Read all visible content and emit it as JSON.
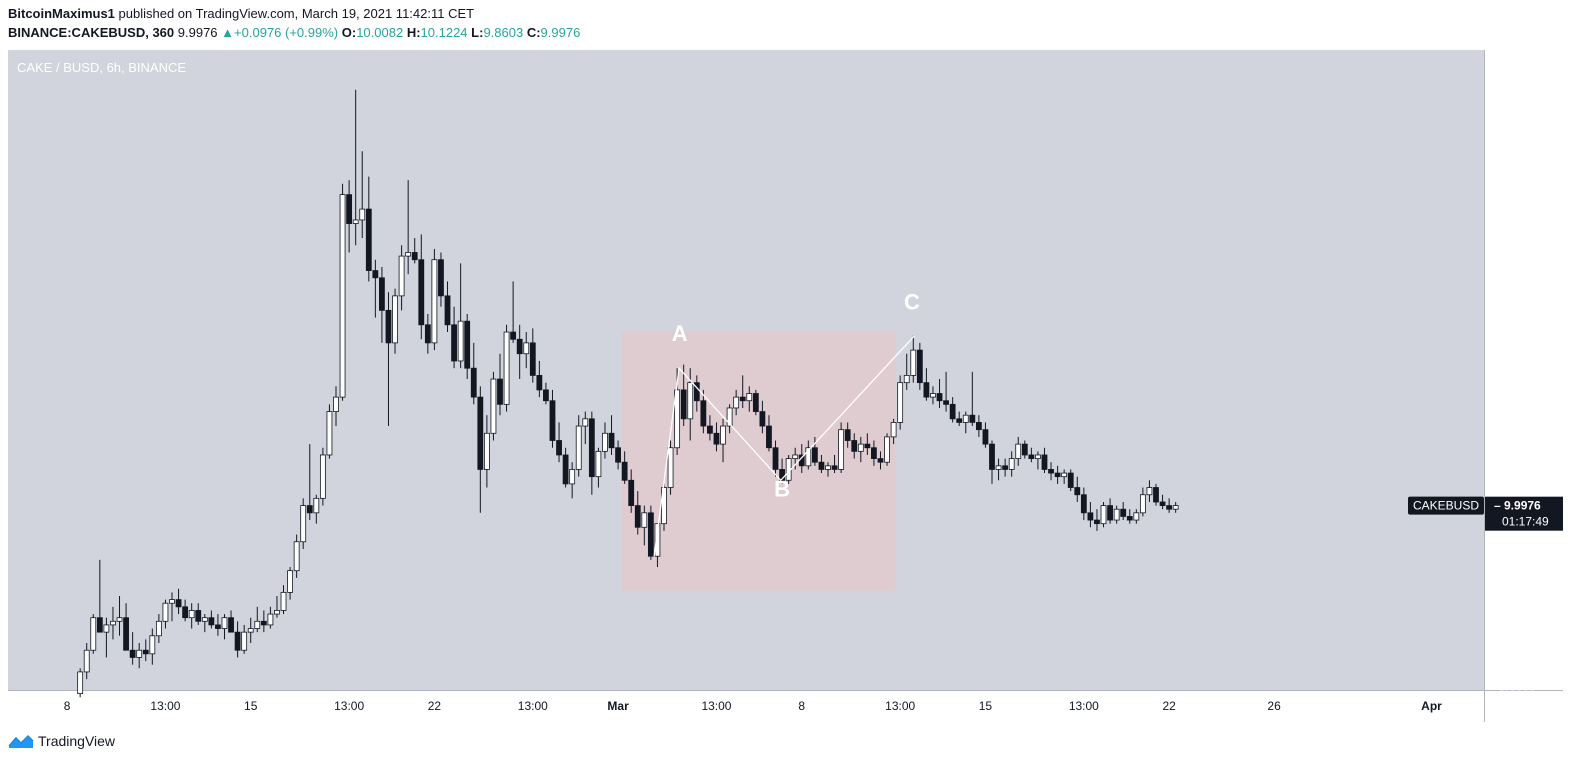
{
  "header": {
    "author": "BitcoinMaximus1",
    "published_text": " published on TradingView.com, March 19, 2021 11:42:11 CET",
    "symbol": "BINANCE:CAKEBUSD, 360",
    "last": "9.9976",
    "change": "+0.0976 (+0.99%)",
    "o_label": "O:",
    "o": "10.0082",
    "h_label": "H:",
    "h": "10.1224",
    "l_label": "L:",
    "l": "9.8603",
    "c_label": "C:",
    "c": "9.9976"
  },
  "footer": {
    "brand": "TradingView"
  },
  "colors": {
    "background": "#d1d4dc",
    "candle_up": "#ffffff",
    "candle_down": "#131722",
    "accent": "#26a69a",
    "zone": "#e3c9cc",
    "badge": "#131722"
  },
  "chart_data": {
    "type": "candlestick",
    "title": "CAKE / BUSD, 6h, BINANCE",
    "currency": "BUSD",
    "yticks": [
      "5.0000",
      "6.0000",
      "7.0000",
      "8.0000",
      "9.0000",
      "10.0000",
      "11.0000",
      "12.0000",
      "13.0000",
      "14.0000",
      "15.0000",
      "16.0000",
      "17.0000",
      "18.0000",
      "19.0000",
      "20.0000",
      "21.0000",
      "22.0000"
    ],
    "ylim": [
      4.9,
      22.6
    ],
    "xticks": [
      {
        "label": "8",
        "t": -2
      },
      {
        "label": "13:00",
        "t": 13
      },
      {
        "label": "15",
        "t": 26
      },
      {
        "label": "13:00",
        "t": 41
      },
      {
        "label": "22",
        "t": 54
      },
      {
        "label": "13:00",
        "t": 69
      },
      {
        "label": "Mar",
        "t": 82,
        "bold": true
      },
      {
        "label": "13:00",
        "t": 97
      },
      {
        "label": "8",
        "t": 110
      },
      {
        "label": "13:00",
        "t": 125
      },
      {
        "label": "15",
        "t": 138
      },
      {
        "label": "13:00",
        "t": 153
      },
      {
        "label": "22",
        "t": 166
      },
      {
        "label": "26",
        "t": 182
      },
      {
        "label": "Apr",
        "t": 206,
        "bold": true
      }
    ],
    "xlim": [
      -11,
      214
    ],
    "ohlc": [
      [
        0,
        4.8,
        5.5,
        4.7,
        5.4
      ],
      [
        1,
        5.4,
        6.2,
        5.2,
        6.0
      ],
      [
        2,
        6.0,
        7.0,
        5.9,
        6.9
      ],
      [
        3,
        6.9,
        8.5,
        6.5,
        6.5
      ],
      [
        4,
        6.5,
        6.9,
        5.8,
        6.7
      ],
      [
        5,
        6.7,
        7.2,
        6.3,
        6.8
      ],
      [
        6,
        6.8,
        7.5,
        6.4,
        6.9
      ],
      [
        7,
        6.9,
        7.3,
        6.0,
        6.0
      ],
      [
        8,
        6.0,
        6.5,
        5.6,
        5.8
      ],
      [
        9,
        5.8,
        6.2,
        5.5,
        6.0
      ],
      [
        10,
        6.0,
        6.3,
        5.7,
        5.9
      ],
      [
        11,
        5.9,
        6.6,
        5.6,
        6.4
      ],
      [
        12,
        6.4,
        7.0,
        6.2,
        6.8
      ],
      [
        13,
        6.8,
        7.4,
        6.6,
        7.3
      ],
      [
        14,
        7.3,
        7.6,
        6.8,
        7.4
      ],
      [
        15,
        7.4,
        7.7,
        7.0,
        7.2
      ],
      [
        16,
        7.2,
        7.4,
        6.8,
        6.9
      ],
      [
        17,
        6.9,
        7.3,
        6.6,
        7.1
      ],
      [
        18,
        7.1,
        7.3,
        6.7,
        6.8
      ],
      [
        19,
        6.8,
        7.0,
        6.5,
        6.9
      ],
      [
        20,
        6.9,
        7.1,
        6.6,
        6.7
      ],
      [
        21,
        6.7,
        7.0,
        6.4,
        6.6
      ],
      [
        22,
        6.6,
        7.0,
        6.3,
        6.9
      ],
      [
        23,
        6.9,
        7.1,
        6.5,
        6.5
      ],
      [
        24,
        6.5,
        6.8,
        5.8,
        6.0
      ],
      [
        25,
        6.0,
        6.7,
        5.9,
        6.5
      ],
      [
        26,
        6.5,
        6.9,
        6.2,
        6.6
      ],
      [
        27,
        6.6,
        7.2,
        6.5,
        6.8
      ],
      [
        28,
        6.8,
        7.1,
        6.5,
        6.7
      ],
      [
        29,
        6.7,
        7.2,
        6.6,
        7.0
      ],
      [
        30,
        7.0,
        7.5,
        6.9,
        7.1
      ],
      [
        31,
        7.1,
        7.8,
        7.0,
        7.6
      ],
      [
        32,
        7.6,
        8.3,
        7.4,
        8.2
      ],
      [
        33,
        8.2,
        9.2,
        8.0,
        9.0
      ],
      [
        34,
        9.0,
        10.2,
        8.8,
        10.0
      ],
      [
        35,
        10.0,
        11.7,
        9.6,
        9.8
      ],
      [
        36,
        9.8,
        10.3,
        9.5,
        10.2
      ],
      [
        37,
        10.2,
        11.6,
        10.0,
        11.4
      ],
      [
        38,
        11.4,
        12.8,
        11.3,
        12.6
      ],
      [
        39,
        12.6,
        13.3,
        12.2,
        13.0
      ],
      [
        40,
        13.0,
        18.9,
        12.9,
        18.6
      ],
      [
        41,
        18.6,
        19.0,
        17.0,
        17.8
      ],
      [
        42,
        17.8,
        21.5,
        17.2,
        17.9
      ],
      [
        43,
        17.9,
        19.8,
        17.4,
        18.2
      ],
      [
        44,
        18.2,
        19.1,
        16.2,
        16.5
      ],
      [
        45,
        16.5,
        16.8,
        15.2,
        16.3
      ],
      [
        46,
        16.3,
        16.6,
        14.5,
        15.4
      ],
      [
        47,
        15.4,
        15.9,
        12.2,
        14.5
      ],
      [
        48,
        14.5,
        16.0,
        14.2,
        15.8
      ],
      [
        49,
        15.8,
        17.2,
        15.4,
        16.9
      ],
      [
        50,
        16.9,
        19.0,
        16.4,
        17.0
      ],
      [
        51,
        17.0,
        17.4,
        16.7,
        16.8
      ],
      [
        52,
        16.8,
        17.5,
        14.6,
        15.0
      ],
      [
        53,
        15.0,
        15.3,
        14.2,
        14.5
      ],
      [
        54,
        14.5,
        17.1,
        14.3,
        16.8
      ],
      [
        55,
        16.8,
        17.0,
        15.5,
        15.8
      ],
      [
        56,
        15.8,
        16.2,
        14.8,
        15.0
      ],
      [
        57,
        15.0,
        15.5,
        13.8,
        14.0
      ],
      [
        58,
        14.0,
        16.7,
        13.8,
        15.1
      ],
      [
        59,
        15.1,
        15.3,
        13.5,
        13.8
      ],
      [
        60,
        13.8,
        14.5,
        12.8,
        13.0
      ],
      [
        61,
        13.0,
        13.3,
        9.8,
        11.0
      ],
      [
        62,
        11.0,
        12.5,
        10.5,
        12.0
      ],
      [
        63,
        12.0,
        13.7,
        11.8,
        13.5
      ],
      [
        64,
        13.5,
        14.2,
        12.5,
        12.8
      ],
      [
        65,
        12.8,
        15.0,
        12.6,
        14.8
      ],
      [
        66,
        14.8,
        16.2,
        14.5,
        14.6
      ],
      [
        67,
        14.6,
        15.0,
        13.5,
        14.2
      ],
      [
        68,
        14.2,
        14.8,
        13.8,
        14.5
      ],
      [
        69,
        14.5,
        14.9,
        13.4,
        13.6
      ],
      [
        70,
        13.6,
        14.0,
        13.0,
        13.2
      ],
      [
        71,
        13.2,
        13.4,
        12.8,
        12.9
      ],
      [
        72,
        12.9,
        13.2,
        11.6,
        11.8
      ],
      [
        73,
        11.8,
        12.3,
        11.2,
        11.4
      ],
      [
        74,
        11.4,
        11.6,
        10.5,
        10.6
      ],
      [
        75,
        10.6,
        11.2,
        10.2,
        11.0
      ],
      [
        76,
        11.0,
        12.5,
        10.8,
        12.2
      ],
      [
        77,
        12.2,
        12.6,
        11.7,
        12.4
      ],
      [
        78,
        12.4,
        12.6,
        10.3,
        10.8
      ],
      [
        79,
        10.8,
        11.6,
        10.5,
        11.5
      ],
      [
        80,
        11.5,
        12.3,
        11.3,
        12.0
      ],
      [
        81,
        12.0,
        12.5,
        11.4,
        11.6
      ],
      [
        82,
        11.6,
        11.8,
        11.0,
        11.2
      ],
      [
        83,
        11.2,
        11.5,
        10.6,
        10.7
      ],
      [
        84,
        10.7,
        11.0,
        9.8,
        10.0
      ],
      [
        85,
        10.0,
        10.4,
        9.2,
        9.4
      ],
      [
        86,
        9.4,
        10.0,
        8.9,
        9.8
      ],
      [
        87,
        9.8,
        10.0,
        8.5,
        8.6
      ],
      [
        88,
        8.6,
        9.5,
        8.3,
        9.5
      ],
      [
        89,
        9.5,
        10.6,
        9.3,
        10.5
      ],
      [
        90,
        10.5,
        11.8,
        10.3,
        11.6
      ],
      [
        91,
        11.6,
        13.8,
        11.4,
        13.2
      ],
      [
        92,
        13.2,
        13.9,
        12.2,
        12.4
      ],
      [
        93,
        12.4,
        13.8,
        11.8,
        13.4
      ],
      [
        94,
        13.4,
        13.6,
        12.6,
        12.9
      ],
      [
        95,
        12.9,
        13.2,
        12.0,
        12.2
      ],
      [
        96,
        12.2,
        12.5,
        11.8,
        12.0
      ],
      [
        97,
        12.0,
        12.3,
        11.5,
        11.7
      ],
      [
        98,
        11.7,
        12.4,
        11.2,
        12.2
      ],
      [
        99,
        12.2,
        12.8,
        12.0,
        12.7
      ],
      [
        100,
        12.7,
        13.2,
        12.5,
        13.0
      ],
      [
        101,
        13.0,
        13.6,
        12.7,
        12.9
      ],
      [
        102,
        12.9,
        13.3,
        12.6,
        13.1
      ],
      [
        103,
        13.1,
        13.2,
        12.5,
        12.6
      ],
      [
        104,
        12.6,
        12.9,
        12.0,
        12.2
      ],
      [
        105,
        12.2,
        12.5,
        11.5,
        11.6
      ],
      [
        106,
        11.6,
        11.8,
        10.8,
        11.0
      ],
      [
        107,
        11.0,
        11.3,
        10.6,
        10.7
      ],
      [
        108,
        10.7,
        11.4,
        10.6,
        11.3
      ],
      [
        109,
        11.3,
        11.6,
        11.0,
        11.4
      ],
      [
        110,
        11.4,
        11.7,
        10.9,
        11.1
      ],
      [
        111,
        11.1,
        11.8,
        11.0,
        11.6
      ],
      [
        112,
        11.6,
        11.9,
        11.1,
        11.2
      ],
      [
        113,
        11.2,
        11.4,
        10.9,
        11.0
      ],
      [
        114,
        11.0,
        11.2,
        10.8,
        11.1
      ],
      [
        115,
        11.1,
        11.4,
        10.9,
        11.0
      ],
      [
        116,
        11.0,
        12.3,
        10.9,
        12.1
      ],
      [
        117,
        12.1,
        12.3,
        11.6,
        11.8
      ],
      [
        118,
        11.8,
        12.0,
        11.3,
        11.5
      ],
      [
        119,
        11.5,
        11.9,
        11.2,
        11.7
      ],
      [
        120,
        11.7,
        12.0,
        11.4,
        11.6
      ],
      [
        121,
        11.6,
        11.8,
        11.1,
        11.3
      ],
      [
        122,
        11.3,
        11.5,
        11.0,
        11.2
      ],
      [
        123,
        11.2,
        12.0,
        11.1,
        11.9
      ],
      [
        124,
        11.9,
        12.4,
        11.7,
        12.3
      ],
      [
        125,
        12.3,
        13.6,
        12.1,
        13.4
      ],
      [
        126,
        13.4,
        14.2,
        13.2,
        13.6
      ],
      [
        127,
        13.6,
        14.7,
        13.4,
        14.3
      ],
      [
        128,
        14.3,
        14.5,
        13.2,
        13.4
      ],
      [
        129,
        13.4,
        13.8,
        12.9,
        13.0
      ],
      [
        130,
        13.0,
        13.3,
        12.8,
        13.1
      ],
      [
        131,
        13.1,
        13.5,
        12.7,
        12.9
      ],
      [
        132,
        12.9,
        13.7,
        12.6,
        12.8
      ],
      [
        133,
        12.8,
        13.0,
        12.3,
        12.4
      ],
      [
        134,
        12.4,
        12.6,
        12.2,
        12.3
      ],
      [
        135,
        12.3,
        12.6,
        12.0,
        12.5
      ],
      [
        136,
        12.5,
        13.7,
        12.2,
        12.3
      ],
      [
        137,
        12.3,
        12.5,
        11.9,
        12.1
      ],
      [
        138,
        12.1,
        12.3,
        11.6,
        11.7
      ],
      [
        139,
        11.7,
        11.8,
        10.6,
        11.0
      ],
      [
        140,
        11.0,
        11.3,
        10.7,
        11.1
      ],
      [
        141,
        11.1,
        11.3,
        10.8,
        11.0
      ],
      [
        142,
        11.0,
        11.5,
        10.8,
        11.3
      ],
      [
        143,
        11.3,
        11.9,
        11.1,
        11.7
      ],
      [
        144,
        11.7,
        11.8,
        11.3,
        11.4
      ],
      [
        145,
        11.4,
        11.6,
        11.2,
        11.3
      ],
      [
        146,
        11.3,
        11.5,
        11.0,
        11.4
      ],
      [
        147,
        11.4,
        11.6,
        10.9,
        11.0
      ],
      [
        148,
        11.0,
        11.2,
        10.7,
        10.9
      ],
      [
        149,
        10.9,
        11.1,
        10.6,
        10.8
      ],
      [
        150,
        10.8,
        11.0,
        10.6,
        10.9
      ],
      [
        151,
        10.9,
        11.0,
        10.4,
        10.5
      ],
      [
        152,
        10.5,
        10.8,
        10.1,
        10.3
      ],
      [
        153,
        10.3,
        10.5,
        9.6,
        9.8
      ],
      [
        154,
        9.8,
        10.1,
        9.4,
        9.6
      ],
      [
        155,
        9.6,
        9.9,
        9.3,
        9.5
      ],
      [
        156,
        9.5,
        10.1,
        9.4,
        10.0
      ],
      [
        157,
        10.0,
        10.2,
        9.5,
        9.6
      ],
      [
        158,
        9.6,
        10.0,
        9.5,
        9.9
      ],
      [
        159,
        9.9,
        10.1,
        9.6,
        9.7
      ],
      [
        160,
        9.7,
        9.9,
        9.5,
        9.6
      ],
      [
        161,
        9.6,
        9.9,
        9.5,
        9.8
      ],
      [
        162,
        9.8,
        10.5,
        9.7,
        10.3
      ],
      [
        163,
        10.3,
        10.7,
        10.1,
        10.5
      ],
      [
        164,
        10.5,
        10.6,
        10.0,
        10.1
      ],
      [
        165,
        10.1,
        10.3,
        9.9,
        10.0
      ],
      [
        166,
        10.0,
        10.2,
        9.8,
        9.9
      ],
      [
        167,
        9.9,
        10.1,
        9.8,
        10.0
      ]
    ],
    "pattern_zone": {
      "t0": 82.5,
      "t1": 124.3,
      "y0": 7.65,
      "y1": 14.8
    },
    "pattern_line": [
      [
        87.5,
        8.6
      ],
      [
        91.3,
        13.8
      ],
      [
        106.8,
        10.7
      ],
      [
        127.2,
        14.7
      ]
    ],
    "pattern_labels": [
      {
        "text": "A",
        "t": 91.4,
        "y": 14.55
      },
      {
        "text": "B",
        "t": 107.0,
        "y": 10.25
      },
      {
        "text": "C",
        "t": 126.8,
        "y": 15.42
      }
    ],
    "price_label": {
      "symbol": "CAKEBUSD",
      "value": "9.9976",
      "value_num": 9.9976,
      "countdown": "01:17:49"
    }
  }
}
